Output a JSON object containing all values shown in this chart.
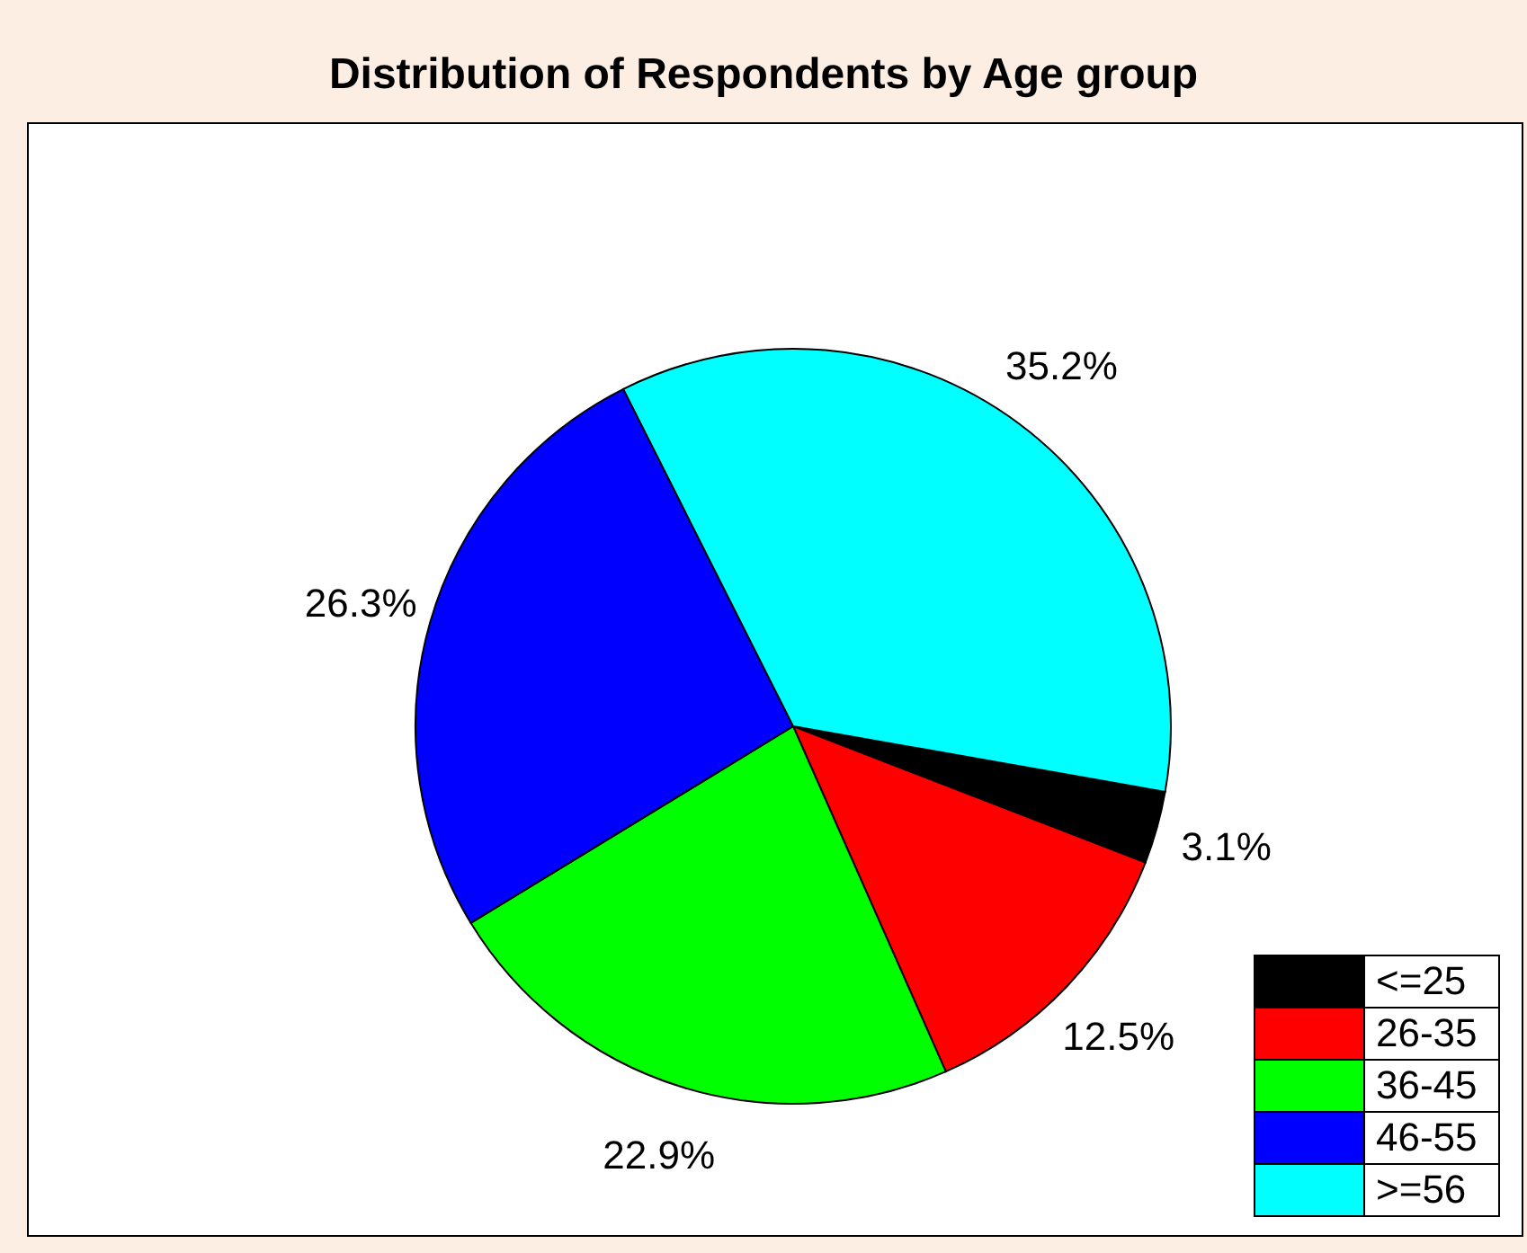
{
  "chart_data": {
    "type": "pie",
    "title": "Distribution of Respondents by Age group",
    "categories": [
      "<=25",
      "26-35",
      "36-45",
      "46-55",
      ">=56"
    ],
    "values": [
      3.1,
      12.5,
      22.9,
      26.3,
      35.2
    ],
    "value_labels": [
      "3.1%",
      "12.5%",
      "22.9%",
      "26.3%",
      "35.2%"
    ],
    "colors": [
      "#000000",
      "#ff0000",
      "#00ff00",
      "#0000ff",
      "#00ffff"
    ],
    "legend": "bottom right"
  }
}
